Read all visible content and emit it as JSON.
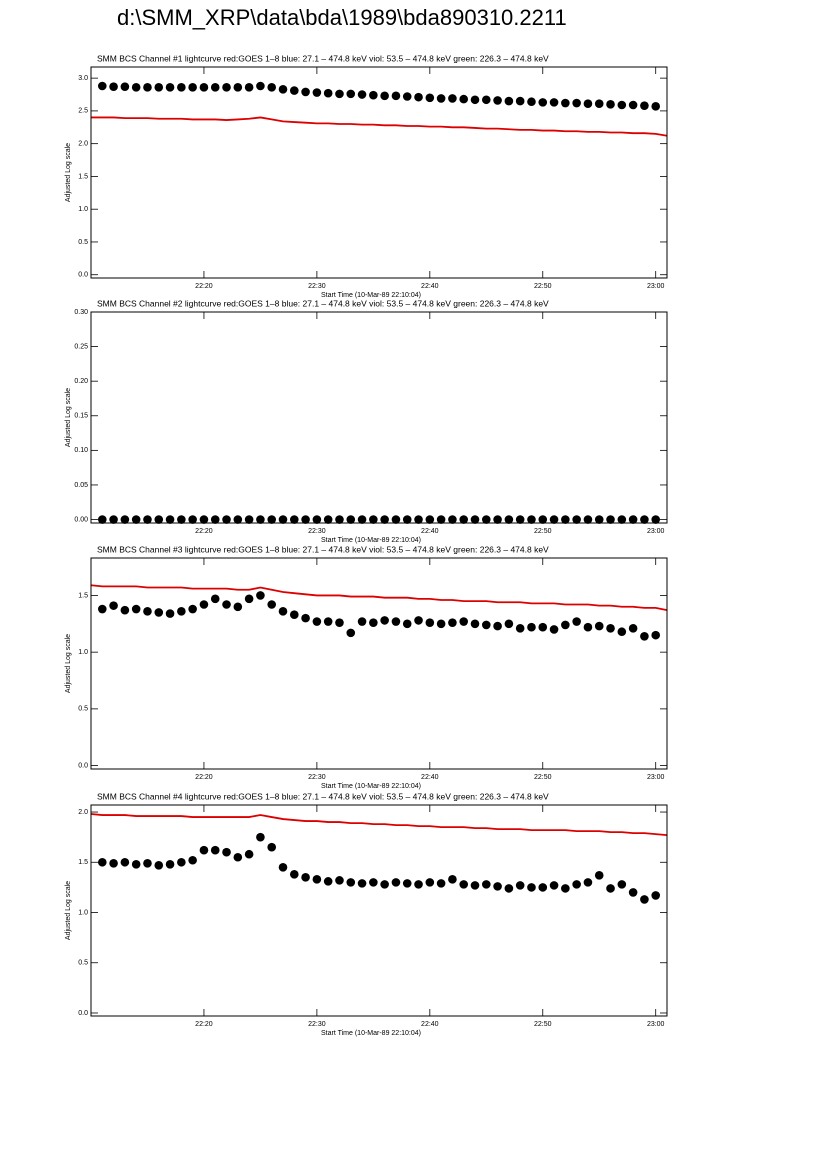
{
  "page_title": "d:\\SMM_XRP\\data\\bda\\1989\\bda890310.2211",
  "chart_data": [
    {
      "type": "scatter",
      "title": "SMM BCS Channel #1 lightcurve  red:GOES 1–8  blue: 27.1 – 474.8 keV  viol: 53.5 – 474.8 keV  green: 226.3 – 474.8 keV",
      "x_label": "Start Time (10-Mar-89 22:10:04)",
      "y_label": "Adjusted Log scale",
      "x": [
        "22:10",
        "22:11",
        "22:12",
        "22:13",
        "22:14",
        "22:15",
        "22:16",
        "22:17",
        "22:18",
        "22:19",
        "22:20",
        "22:21",
        "22:22",
        "22:23",
        "22:24",
        "22:25",
        "22:26",
        "22:27",
        "22:28",
        "22:29",
        "22:30",
        "22:31",
        "22:32",
        "22:33",
        "22:34",
        "22:35",
        "22:36",
        "22:37",
        "22:38",
        "22:39",
        "22:40",
        "22:41",
        "22:42",
        "22:43",
        "22:44",
        "22:45",
        "22:46",
        "22:47",
        "22:48",
        "22:49",
        "22:50",
        "22:51",
        "22:52",
        "22:53",
        "22:54",
        "22:55",
        "22:56",
        "22:57",
        "22:58",
        "22:59",
        "23:00",
        "23:01"
      ],
      "xlim": [
        "22:10",
        "23:01"
      ],
      "xticks": [
        "22:20",
        "22:30",
        "22:40",
        "22:50",
        "23:00"
      ],
      "ylim": [
        -0.05,
        3.17
      ],
      "yticks": [
        {
          "value": 0,
          "label": "0.0"
        },
        0.5,
        {
          "value": 1,
          "label": "1.0"
        },
        1.5,
        {
          "value": 2,
          "label": "2.0"
        },
        2.5,
        {
          "value": 3,
          "label": "3.0"
        }
      ],
      "series": [
        {
          "color": "#dd0000",
          "mode": "line",
          "values": [
            2.4,
            2.4,
            2.4,
            2.39,
            2.39,
            2.39,
            2.38,
            2.38,
            2.38,
            2.37,
            2.37,
            2.37,
            2.36,
            2.37,
            2.38,
            2.4,
            2.37,
            2.34,
            2.33,
            2.32,
            2.31,
            2.31,
            2.3,
            2.3,
            2.29,
            2.29,
            2.28,
            2.28,
            2.27,
            2.27,
            2.26,
            2.26,
            2.25,
            2.25,
            2.24,
            2.23,
            2.23,
            2.22,
            2.21,
            2.21,
            2.2,
            2.2,
            2.19,
            2.19,
            2.18,
            2.18,
            2.17,
            2.17,
            2.16,
            2.16,
            2.15,
            2.12
          ]
        },
        {
          "color": "#000000",
          "mode": "markers",
          "values": [
            null,
            2.88,
            2.87,
            2.87,
            2.86,
            2.86,
            2.86,
            2.86,
            2.86,
            2.86,
            2.86,
            2.86,
            2.86,
            2.86,
            2.86,
            2.88,
            2.86,
            2.83,
            2.81,
            2.79,
            2.78,
            2.77,
            2.76,
            2.76,
            2.75,
            2.74,
            2.73,
            2.73,
            2.72,
            2.71,
            2.7,
            2.69,
            2.69,
            2.68,
            2.67,
            2.67,
            2.66,
            2.65,
            2.65,
            2.64,
            2.63,
            2.63,
            2.62,
            2.62,
            2.61,
            2.61,
            2.6,
            2.59,
            2.59,
            2.58,
            2.57,
            null
          ]
        }
      ]
    },
    {
      "type": "scatter",
      "title": "SMM BCS Channel #2 lightcurve  red:GOES 1–8  blue: 27.1 – 474.8 keV  viol: 53.5 – 474.8 keV  green: 226.3 – 474.8 keV",
      "x_label": "Start Time (10-Mar-89 22:10:04)",
      "y_label": "Adjusted Log scale",
      "x": [
        "22:10",
        "22:11",
        "22:12",
        "22:13",
        "22:14",
        "22:15",
        "22:16",
        "22:17",
        "22:18",
        "22:19",
        "22:20",
        "22:21",
        "22:22",
        "22:23",
        "22:24",
        "22:25",
        "22:26",
        "22:27",
        "22:28",
        "22:29",
        "22:30",
        "22:31",
        "22:32",
        "22:33",
        "22:34",
        "22:35",
        "22:36",
        "22:37",
        "22:38",
        "22:39",
        "22:40",
        "22:41",
        "22:42",
        "22:43",
        "22:44",
        "22:45",
        "22:46",
        "22:47",
        "22:48",
        "22:49",
        "22:50",
        "22:51",
        "22:52",
        "22:53",
        "22:54",
        "22:55",
        "22:56",
        "22:57",
        "22:58",
        "22:59",
        "23:00",
        "23:01"
      ],
      "xlim": [
        "22:10",
        "23:01"
      ],
      "xticks": [
        "22:20",
        "22:30",
        "22:40",
        "22:50",
        "23:00"
      ],
      "ylim": [
        -0.005,
        0.3
      ],
      "yticks": [
        {
          "value": 0,
          "label": "0.00"
        },
        0.05,
        {
          "value": 0.1,
          "label": "0.10"
        },
        0.15,
        {
          "value": 0.2,
          "label": "0.20"
        },
        0.25,
        {
          "value": 0.3,
          "label": "0.30"
        }
      ],
      "series": [
        {
          "color": "#000000",
          "mode": "markers",
          "values": [
            null,
            0,
            0,
            0,
            0,
            0,
            0,
            0,
            0,
            0,
            0,
            0,
            0,
            0,
            0,
            0,
            0,
            0,
            0,
            0,
            0,
            0,
            0,
            0,
            0,
            0,
            0,
            0,
            0,
            0,
            0,
            0,
            0,
            0,
            0,
            0,
            0,
            0,
            0,
            0,
            0,
            0,
            0,
            0,
            0,
            0,
            0,
            0,
            0,
            0,
            0,
            null
          ]
        }
      ]
    },
    {
      "type": "scatter",
      "title": "SMM BCS Channel #3 lightcurve  red:GOES 1–8  blue: 27.1 – 474.8 keV  viol: 53.5 – 474.8 keV  green: 226.3 – 474.8 keV",
      "x_label": "Start Time (10-Mar-89 22:10:04)",
      "y_label": "Adjusted Log scale",
      "x": [
        "22:10",
        "22:11",
        "22:12",
        "22:13",
        "22:14",
        "22:15",
        "22:16",
        "22:17",
        "22:18",
        "22:19",
        "22:20",
        "22:21",
        "22:22",
        "22:23",
        "22:24",
        "22:25",
        "22:26",
        "22:27",
        "22:28",
        "22:29",
        "22:30",
        "22:31",
        "22:32",
        "22:33",
        "22:34",
        "22:35",
        "22:36",
        "22:37",
        "22:38",
        "22:39",
        "22:40",
        "22:41",
        "22:42",
        "22:43",
        "22:44",
        "22:45",
        "22:46",
        "22:47",
        "22:48",
        "22:49",
        "22:50",
        "22:51",
        "22:52",
        "22:53",
        "22:54",
        "22:55",
        "22:56",
        "22:57",
        "22:58",
        "22:59",
        "23:00",
        "23:01"
      ],
      "xlim": [
        "22:10",
        "23:01"
      ],
      "xticks": [
        "22:20",
        "22:30",
        "22:40",
        "22:50",
        "23:00"
      ],
      "ylim": [
        -0.03,
        1.83
      ],
      "yticks": [
        {
          "value": 0,
          "label": "0.0"
        },
        0.5,
        {
          "value": 1,
          "label": "1.0"
        },
        1.5
      ],
      "series": [
        {
          "color": "#dd0000",
          "mode": "line",
          "values": [
            1.59,
            1.58,
            1.58,
            1.58,
            1.58,
            1.57,
            1.57,
            1.57,
            1.57,
            1.56,
            1.56,
            1.56,
            1.56,
            1.55,
            1.55,
            1.57,
            1.55,
            1.53,
            1.52,
            1.51,
            1.5,
            1.5,
            1.5,
            1.49,
            1.49,
            1.49,
            1.48,
            1.48,
            1.48,
            1.47,
            1.47,
            1.46,
            1.46,
            1.45,
            1.45,
            1.45,
            1.44,
            1.44,
            1.44,
            1.43,
            1.43,
            1.43,
            1.42,
            1.42,
            1.42,
            1.41,
            1.41,
            1.4,
            1.4,
            1.39,
            1.39,
            1.37
          ]
        },
        {
          "color": "#000000",
          "mode": "markers",
          "values": [
            null,
            1.38,
            1.41,
            1.37,
            1.38,
            1.36,
            1.35,
            1.34,
            1.36,
            1.38,
            1.42,
            1.47,
            1.42,
            1.4,
            1.47,
            1.5,
            1.42,
            1.36,
            1.33,
            1.3,
            1.27,
            1.27,
            1.26,
            1.17,
            1.27,
            1.26,
            1.28,
            1.27,
            1.25,
            1.28,
            1.26,
            1.25,
            1.26,
            1.27,
            1.25,
            1.24,
            1.23,
            1.25,
            1.21,
            1.22,
            1.22,
            1.2,
            1.24,
            1.27,
            1.22,
            1.23,
            1.21,
            1.18,
            1.21,
            1.14,
            1.15,
            null
          ]
        }
      ]
    },
    {
      "type": "scatter",
      "title": "SMM BCS Channel #4 lightcurve  red:GOES 1–8  blue: 27.1 – 474.8 keV  viol: 53.5 – 474.8 keV  green: 226.3 – 474.8 keV",
      "x_label": "Start Time (10-Mar-89 22:10:04)",
      "y_label": "Adjusted Log scale",
      "x": [
        "22:10",
        "22:11",
        "22:12",
        "22:13",
        "22:14",
        "22:15",
        "22:16",
        "22:17",
        "22:18",
        "22:19",
        "22:20",
        "22:21",
        "22:22",
        "22:23",
        "22:24",
        "22:25",
        "22:26",
        "22:27",
        "22:28",
        "22:29",
        "22:30",
        "22:31",
        "22:32",
        "22:33",
        "22:34",
        "22:35",
        "22:36",
        "22:37",
        "22:38",
        "22:39",
        "22:40",
        "22:41",
        "22:42",
        "22:43",
        "22:44",
        "22:45",
        "22:46",
        "22:47",
        "22:48",
        "22:49",
        "22:50",
        "22:51",
        "22:52",
        "22:53",
        "22:54",
        "22:55",
        "22:56",
        "22:57",
        "22:58",
        "22:59",
        "23:00",
        "23:01"
      ],
      "xlim": [
        "22:10",
        "23:01"
      ],
      "xticks": [
        "22:20",
        "22:30",
        "22:40",
        "22:50",
        "23:00"
      ],
      "ylim": [
        -0.03,
        2.07
      ],
      "yticks": [
        {
          "value": 0,
          "label": "0.0"
        },
        0.5,
        {
          "value": 1,
          "label": "1.0"
        },
        1.5,
        {
          "value": 2,
          "label": "2.0"
        }
      ],
      "series": [
        {
          "color": "#dd0000",
          "mode": "line",
          "values": [
            1.98,
            1.97,
            1.97,
            1.97,
            1.96,
            1.96,
            1.96,
            1.96,
            1.96,
            1.95,
            1.95,
            1.95,
            1.95,
            1.95,
            1.95,
            1.97,
            1.95,
            1.93,
            1.92,
            1.91,
            1.91,
            1.9,
            1.9,
            1.89,
            1.89,
            1.88,
            1.88,
            1.87,
            1.87,
            1.86,
            1.86,
            1.85,
            1.85,
            1.85,
            1.84,
            1.84,
            1.83,
            1.83,
            1.83,
            1.82,
            1.82,
            1.82,
            1.82,
            1.81,
            1.81,
            1.81,
            1.8,
            1.8,
            1.79,
            1.79,
            1.78,
            1.77
          ]
        },
        {
          "color": "#000000",
          "mode": "markers",
          "values": [
            null,
            1.5,
            1.49,
            1.5,
            1.48,
            1.49,
            1.47,
            1.48,
            1.5,
            1.52,
            1.62,
            1.62,
            1.6,
            1.55,
            1.58,
            1.75,
            1.65,
            1.45,
            1.38,
            1.35,
            1.33,
            1.31,
            1.32,
            1.3,
            1.29,
            1.3,
            1.28,
            1.3,
            1.29,
            1.28,
            1.3,
            1.29,
            1.33,
            1.28,
            1.27,
            1.28,
            1.26,
            1.24,
            1.27,
            1.25,
            1.25,
            1.27,
            1.24,
            1.28,
            1.3,
            1.37,
            1.24,
            1.28,
            1.2,
            1.13,
            1.17,
            null
          ]
        }
      ]
    }
  ]
}
